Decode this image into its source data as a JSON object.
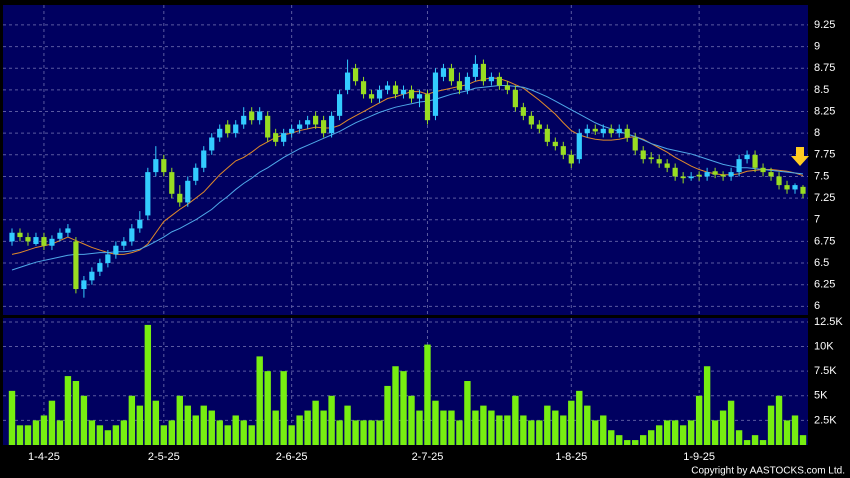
{
  "chart_data": {
    "type": "candlestick",
    "up_color": "#33ccff",
    "down_color": "#99dd22",
    "volume_color": "#77ee11",
    "open": [
      6.75,
      6.85,
      6.8,
      6.72,
      6.8,
      6.7,
      6.78,
      6.85,
      6.75,
      6.2,
      6.3,
      6.4,
      6.5,
      6.6,
      6.7,
      6.75,
      6.9,
      7.05,
      7.55,
      7.7,
      7.55,
      7.3,
      7.2,
      7.45,
      7.6,
      7.8,
      7.95,
      8.1,
      8.0,
      8.1,
      8.25,
      8.15,
      8.2,
      8.0,
      7.9,
      8.0,
      8.05,
      8.1,
      8.2,
      8.15,
      8.0,
      8.2,
      8.5,
      8.75,
      8.6,
      8.45,
      8.4,
      8.5,
      8.55,
      8.45,
      8.5,
      8.4,
      8.45,
      8.2,
      8.65,
      8.75,
      8.6,
      8.5,
      8.65,
      8.8,
      8.6,
      8.65,
      8.55,
      8.5,
      8.3,
      8.2,
      8.1,
      8.05,
      7.9,
      7.85,
      7.75,
      7.7,
      8.0,
      8.05,
      8.0,
      8.05,
      8.0,
      8.05,
      7.95,
      7.8,
      7.72,
      7.7,
      7.65,
      7.6,
      7.5,
      7.48,
      7.52,
      7.5,
      7.56,
      7.52,
      7.5,
      7.55,
      7.7,
      7.75,
      7.6,
      7.55,
      7.5,
      7.4,
      7.35,
      7.38
    ],
    "high": [
      6.9,
      6.9,
      6.85,
      6.85,
      6.85,
      6.82,
      6.9,
      6.95,
      6.8,
      6.35,
      6.45,
      6.55,
      6.65,
      6.75,
      6.8,
      6.95,
      7.1,
      7.6,
      7.85,
      7.75,
      7.6,
      7.4,
      7.5,
      7.65,
      7.85,
      8.0,
      8.1,
      8.15,
      8.15,
      8.3,
      8.3,
      8.3,
      8.25,
      8.05,
      8.05,
      8.1,
      8.15,
      8.2,
      8.25,
      8.2,
      8.25,
      8.5,
      8.85,
      8.8,
      8.65,
      8.5,
      8.55,
      8.6,
      8.6,
      8.55,
      8.55,
      8.5,
      8.5,
      8.75,
      8.8,
      8.8,
      8.7,
      8.7,
      8.9,
      8.85,
      8.7,
      8.7,
      8.6,
      8.55,
      8.35,
      8.25,
      8.15,
      8.1,
      7.95,
      7.9,
      7.8,
      8.05,
      8.1,
      8.1,
      8.1,
      8.1,
      8.1,
      8.1,
      8.0,
      7.85,
      7.78,
      7.75,
      7.7,
      7.65,
      7.55,
      7.55,
      7.56,
      7.6,
      7.6,
      7.56,
      7.6,
      7.75,
      7.8,
      7.8,
      7.65,
      7.6,
      7.55,
      7.45,
      7.42,
      7.4
    ],
    "low": [
      6.7,
      6.75,
      6.7,
      6.7,
      6.65,
      6.65,
      6.75,
      6.8,
      6.15,
      6.1,
      6.25,
      6.35,
      6.45,
      6.55,
      6.65,
      6.7,
      6.85,
      7.0,
      7.5,
      7.5,
      7.25,
      7.15,
      7.15,
      7.4,
      7.55,
      7.75,
      7.9,
      7.95,
      7.95,
      8.05,
      8.1,
      8.1,
      7.9,
      7.85,
      7.85,
      7.95,
      8.0,
      8.05,
      8.05,
      7.95,
      7.95,
      8.15,
      8.45,
      8.55,
      8.4,
      8.35,
      8.35,
      8.45,
      8.4,
      8.4,
      8.35,
      8.3,
      8.1,
      8.15,
      8.6,
      8.55,
      8.45,
      8.45,
      8.6,
      8.55,
      8.55,
      8.5,
      8.45,
      8.25,
      8.15,
      8.05,
      8.0,
      7.85,
      7.8,
      7.7,
      7.6,
      7.65,
      7.95,
      7.98,
      7.95,
      7.95,
      7.95,
      7.9,
      7.75,
      7.65,
      7.65,
      7.6,
      7.55,
      7.45,
      7.42,
      7.45,
      7.45,
      7.45,
      7.48,
      7.45,
      7.45,
      7.5,
      7.65,
      7.55,
      7.5,
      7.45,
      7.35,
      7.3,
      7.3,
      7.25
    ],
    "close": [
      6.85,
      6.8,
      6.75,
      6.8,
      6.7,
      6.78,
      6.85,
      6.9,
      6.2,
      6.3,
      6.4,
      6.5,
      6.6,
      6.7,
      6.75,
      6.9,
      7.0,
      7.55,
      7.7,
      7.55,
      7.3,
      7.2,
      7.45,
      7.6,
      7.8,
      7.95,
      8.05,
      8.0,
      8.1,
      8.2,
      8.15,
      8.25,
      7.95,
      7.9,
      8.0,
      8.05,
      8.1,
      8.15,
      8.1,
      8.0,
      8.2,
      8.45,
      8.7,
      8.6,
      8.45,
      8.4,
      8.5,
      8.55,
      8.45,
      8.5,
      8.4,
      8.45,
      8.15,
      8.7,
      8.75,
      8.6,
      8.5,
      8.65,
      8.8,
      8.6,
      8.65,
      8.55,
      8.5,
      8.3,
      8.2,
      8.1,
      8.05,
      7.9,
      7.85,
      7.75,
      7.65,
      8.0,
      8.05,
      8.02,
      8.05,
      8.0,
      8.05,
      7.95,
      7.8,
      7.7,
      7.7,
      7.65,
      7.6,
      7.5,
      7.48,
      7.5,
      7.5,
      7.55,
      7.52,
      7.5,
      7.55,
      7.7,
      7.75,
      7.6,
      7.55,
      7.5,
      7.4,
      7.35,
      7.4,
      7.3
    ],
    "volume": [
      5500,
      2000,
      2000,
      2500,
      3000,
      4500,
      2500,
      7000,
      6500,
      5000,
      2500,
      2000,
      1500,
      2000,
      2500,
      5000,
      4000,
      12200,
      4500,
      2000,
      2500,
      5000,
      4000,
      3000,
      4000,
      3500,
      2500,
      2000,
      3000,
      2500,
      2000,
      9000,
      7500,
      3500,
      7500,
      2000,
      3000,
      3500,
      4500,
      3500,
      5000,
      2500,
      4000,
      2500,
      2500,
      2500,
      2500,
      6000,
      8000,
      7500,
      5000,
      3500,
      10200,
      4500,
      3500,
      3500,
      2500,
      6500,
      3500,
      4000,
      3500,
      3000,
      3000,
      5000,
      3000,
      2500,
      2500,
      4000,
      3500,
      3000,
      4500,
      5500,
      4000,
      2500,
      3000,
      1500,
      1000,
      500,
      500,
      1000,
      1500,
      2000,
      2500,
      2500,
      2000,
      2500,
      5000,
      8000,
      2500,
      3500,
      4500,
      1500,
      500,
      1000,
      500,
      4000,
      5000,
      2500,
      3000,
      1000
    ],
    "ma": [
      {
        "color": "#e08a2a",
        "values": [
          6.6,
          6.62,
          6.65,
          6.68,
          6.7,
          6.72,
          6.76,
          6.8,
          6.76,
          6.72,
          6.68,
          6.65,
          6.62,
          6.6,
          6.6,
          6.62,
          6.65,
          6.72,
          6.85,
          6.98,
          7.05,
          7.12,
          7.18,
          7.25,
          7.32,
          7.42,
          7.52,
          7.6,
          7.68,
          7.72,
          7.78,
          7.85,
          7.9,
          7.95,
          7.98,
          8.0,
          8.03,
          8.05,
          8.07,
          8.06,
          8.06,
          8.09,
          8.15,
          8.2,
          8.25,
          8.3,
          8.35,
          8.4,
          8.42,
          8.45,
          8.48,
          8.48,
          8.45,
          8.48,
          8.5,
          8.52,
          8.54,
          8.56,
          8.6,
          8.62,
          8.64,
          8.63,
          8.6,
          8.56,
          8.52,
          8.45,
          8.38,
          8.3,
          8.22,
          8.12,
          8.03,
          7.98,
          7.95,
          7.93,
          7.92,
          7.92,
          7.93,
          7.95,
          7.96,
          7.93,
          7.88,
          7.83,
          7.78,
          7.72,
          7.67,
          7.62,
          7.58,
          7.55,
          7.53,
          7.52,
          7.52,
          7.53,
          7.56,
          7.57,
          7.58,
          7.58,
          7.57,
          7.56,
          7.54,
          7.51
        ]
      },
      {
        "color": "#4fa8e8",
        "values": [
          6.42,
          6.45,
          6.48,
          6.51,
          6.53,
          6.55,
          6.57,
          6.59,
          6.6,
          6.6,
          6.61,
          6.62,
          6.62,
          6.63,
          6.63,
          6.64,
          6.66,
          6.7,
          6.75,
          6.8,
          6.86,
          6.9,
          6.95,
          7.0,
          7.06,
          7.12,
          7.2,
          7.27,
          7.35,
          7.42,
          7.48,
          7.55,
          7.6,
          7.66,
          7.72,
          7.77,
          7.82,
          7.86,
          7.9,
          7.94,
          7.98,
          8.02,
          8.07,
          8.12,
          8.16,
          8.2,
          8.24,
          8.27,
          8.3,
          8.32,
          8.34,
          8.36,
          8.37,
          8.39,
          8.42,
          8.45,
          8.47,
          8.49,
          8.52,
          8.53,
          8.54,
          8.55,
          8.55,
          8.54,
          8.53,
          8.5,
          8.46,
          8.42,
          8.37,
          8.32,
          8.27,
          8.22,
          8.17,
          8.12,
          8.08,
          8.05,
          8.02,
          7.99,
          7.96,
          7.92,
          7.88,
          7.85,
          7.82,
          7.8,
          7.78,
          7.76,
          7.73,
          7.7,
          7.67,
          7.64,
          7.62,
          7.6,
          7.6,
          7.59,
          7.58,
          7.57,
          7.56,
          7.55,
          7.54,
          7.53
        ]
      }
    ],
    "dates": [
      null,
      null,
      null,
      null,
      "1-4-25",
      null,
      null,
      null,
      null,
      null,
      null,
      null,
      null,
      null,
      null,
      null,
      null,
      null,
      null,
      "2-5-25",
      null,
      null,
      null,
      null,
      null,
      null,
      null,
      null,
      null,
      null,
      null,
      null,
      null,
      null,
      null,
      "2-6-25",
      null,
      null,
      null,
      null,
      null,
      null,
      null,
      null,
      null,
      null,
      null,
      null,
      null,
      null,
      null,
      null,
      "2-7-25",
      null,
      null,
      null,
      null,
      null,
      null,
      null,
      null,
      null,
      null,
      null,
      null,
      null,
      null,
      null,
      null,
      null,
      "1-8-25",
      null,
      null,
      null,
      null,
      null,
      null,
      null,
      null,
      null,
      null,
      null,
      null,
      null,
      null,
      null,
      "1-9-25",
      null,
      null,
      null,
      null,
      null,
      null,
      null,
      null,
      null,
      null,
      null,
      null,
      null
    ],
    "ylim": [
      5.9,
      9.48
    ],
    "yticks": [
      6,
      6.25,
      6.5,
      6.75,
      7,
      7.25,
      7.5,
      7.75,
      8,
      8.25,
      8.5,
      8.75,
      9,
      9.25
    ],
    "volume_ylim": [
      0,
      12900
    ],
    "volume_ticks": [
      {
        "value": 2500,
        "label": "2.5K"
      },
      {
        "value": 5000,
        "label": "5K"
      },
      {
        "value": 7500,
        "label": "7.5K"
      },
      {
        "value": 10000,
        "label": "10K"
      },
      {
        "value": 12500,
        "label": "12.5K"
      }
    ],
    "grid": true,
    "copyright": "Copyright by AASTOCKS.com Ltd."
  }
}
